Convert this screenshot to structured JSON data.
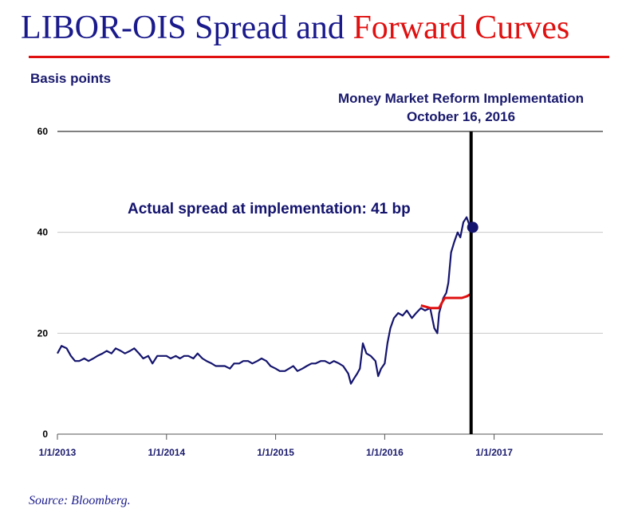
{
  "slide": {
    "title_part1": "LIBOR-OIS Spread and ",
    "title_part2": "Forward Curves",
    "units": "Basis points",
    "source": "Source: Bloomberg."
  },
  "colors": {
    "title_blue": "#1a1a8c",
    "title_red": "#e01010",
    "series_navy": "#14146e",
    "forward_red": "#e01010",
    "grid": "#c8c8c8"
  },
  "chart_data": {
    "type": "line",
    "ylim": [
      0,
      60
    ],
    "yticks": [
      0,
      20,
      40,
      60
    ],
    "xlim": [
      "2013-01-01",
      "2017-12-31"
    ],
    "xticks": [
      "1/1/2013",
      "1/1/2014",
      "1/1/2015",
      "1/1/2016",
      "1/1/2017"
    ],
    "grid": true,
    "annotations": {
      "event_line_date": "2016-10-16",
      "event_label_1": "Money Market Reform Implementation",
      "event_label_2": "October 16, 2016",
      "actual_label": "Actual spread at implementation: 41 bp",
      "actual_point": {
        "x": "2016-10-16",
        "y": 41
      }
    },
    "series": [
      {
        "color": "#14146e",
        "points": [
          [
            "2013-01-01",
            16
          ],
          [
            "2013-01-15",
            17.5
          ],
          [
            "2013-02-01",
            17
          ],
          [
            "2013-02-15",
            15.5
          ],
          [
            "2013-03-01",
            14.5
          ],
          [
            "2013-03-15",
            14.5
          ],
          [
            "2013-04-01",
            15
          ],
          [
            "2013-04-15",
            14.5
          ],
          [
            "2013-05-01",
            15
          ],
          [
            "2013-05-15",
            15.5
          ],
          [
            "2013-06-01",
            16
          ],
          [
            "2013-06-15",
            16.5
          ],
          [
            "2013-07-01",
            16
          ],
          [
            "2013-07-15",
            17
          ],
          [
            "2013-08-01",
            16.5
          ],
          [
            "2013-08-15",
            16
          ],
          [
            "2013-09-01",
            16.5
          ],
          [
            "2013-09-15",
            17
          ],
          [
            "2013-10-01",
            16
          ],
          [
            "2013-10-15",
            15
          ],
          [
            "2013-11-01",
            15.5
          ],
          [
            "2013-11-15",
            14
          ],
          [
            "2013-12-01",
            15.5
          ],
          [
            "2013-12-15",
            15.5
          ],
          [
            "2014-01-01",
            15.5
          ],
          [
            "2014-01-15",
            15
          ],
          [
            "2014-02-01",
            15.5
          ],
          [
            "2014-02-15",
            15
          ],
          [
            "2014-03-01",
            15.5
          ],
          [
            "2014-03-15",
            15.5
          ],
          [
            "2014-04-01",
            15
          ],
          [
            "2014-04-15",
            16
          ],
          [
            "2014-05-01",
            15
          ],
          [
            "2014-05-15",
            14.5
          ],
          [
            "2014-06-01",
            14
          ],
          [
            "2014-06-15",
            13.5
          ],
          [
            "2014-07-01",
            13.5
          ],
          [
            "2014-07-15",
            13.5
          ],
          [
            "2014-08-01",
            13
          ],
          [
            "2014-08-15",
            14
          ],
          [
            "2014-09-01",
            14
          ],
          [
            "2014-09-15",
            14.5
          ],
          [
            "2014-10-01",
            14.5
          ],
          [
            "2014-10-15",
            14
          ],
          [
            "2014-11-01",
            14.5
          ],
          [
            "2014-11-15",
            15
          ],
          [
            "2014-12-01",
            14.5
          ],
          [
            "2014-12-15",
            13.5
          ],
          [
            "2015-01-01",
            13
          ],
          [
            "2015-01-15",
            12.5
          ],
          [
            "2015-02-01",
            12.5
          ],
          [
            "2015-02-15",
            13
          ],
          [
            "2015-03-01",
            13.5
          ],
          [
            "2015-03-15",
            12.5
          ],
          [
            "2015-04-01",
            13
          ],
          [
            "2015-04-15",
            13.5
          ],
          [
            "2015-05-01",
            14
          ],
          [
            "2015-05-15",
            14
          ],
          [
            "2015-06-01",
            14.5
          ],
          [
            "2015-06-15",
            14.5
          ],
          [
            "2015-07-01",
            14
          ],
          [
            "2015-07-15",
            14.5
          ],
          [
            "2015-08-01",
            14
          ],
          [
            "2015-08-15",
            13.5
          ],
          [
            "2015-09-01",
            12
          ],
          [
            "2015-09-10",
            10
          ],
          [
            "2015-09-20",
            11
          ],
          [
            "2015-10-01",
            12
          ],
          [
            "2015-10-10",
            13
          ],
          [
            "2015-10-20",
            18
          ],
          [
            "2015-11-01",
            16
          ],
          [
            "2015-11-15",
            15.5
          ],
          [
            "2015-12-01",
            14.5
          ],
          [
            "2015-12-10",
            11.5
          ],
          [
            "2015-12-20",
            13
          ],
          [
            "2016-01-01",
            14
          ],
          [
            "2016-01-10",
            18
          ],
          [
            "2016-01-20",
            21
          ],
          [
            "2016-02-01",
            23
          ],
          [
            "2016-02-15",
            24
          ],
          [
            "2016-03-01",
            23.5
          ],
          [
            "2016-03-15",
            24.5
          ],
          [
            "2016-04-01",
            23
          ],
          [
            "2016-04-15",
            24
          ],
          [
            "2016-05-01",
            25
          ],
          [
            "2016-05-15",
            24.5
          ],
          [
            "2016-06-01",
            25
          ],
          [
            "2016-06-15",
            21
          ],
          [
            "2016-06-25",
            20
          ],
          [
            "2016-07-01",
            24
          ],
          [
            "2016-07-15",
            27
          ],
          [
            "2016-07-25",
            28
          ],
          [
            "2016-08-01",
            30
          ],
          [
            "2016-08-10",
            36
          ],
          [
            "2016-08-20",
            38
          ],
          [
            "2016-09-01",
            40
          ],
          [
            "2016-09-10",
            39
          ],
          [
            "2016-09-20",
            42
          ],
          [
            "2016-10-01",
            43
          ],
          [
            "2016-10-10",
            41.5
          ],
          [
            "2016-10-16",
            41
          ]
        ]
      },
      {
        "color": "#e01010",
        "points": [
          [
            "2016-05-01",
            25.5
          ],
          [
            "2016-05-15",
            25.3
          ],
          [
            "2016-06-01",
            25
          ],
          [
            "2016-06-15",
            25
          ],
          [
            "2016-07-01",
            25
          ],
          [
            "2016-07-10",
            26
          ],
          [
            "2016-07-20",
            27
          ],
          [
            "2016-08-01",
            27
          ],
          [
            "2016-08-15",
            27
          ],
          [
            "2016-09-01",
            27
          ],
          [
            "2016-09-15",
            27
          ],
          [
            "2016-10-01",
            27.3
          ],
          [
            "2016-10-16",
            27.8
          ]
        ]
      }
    ]
  }
}
